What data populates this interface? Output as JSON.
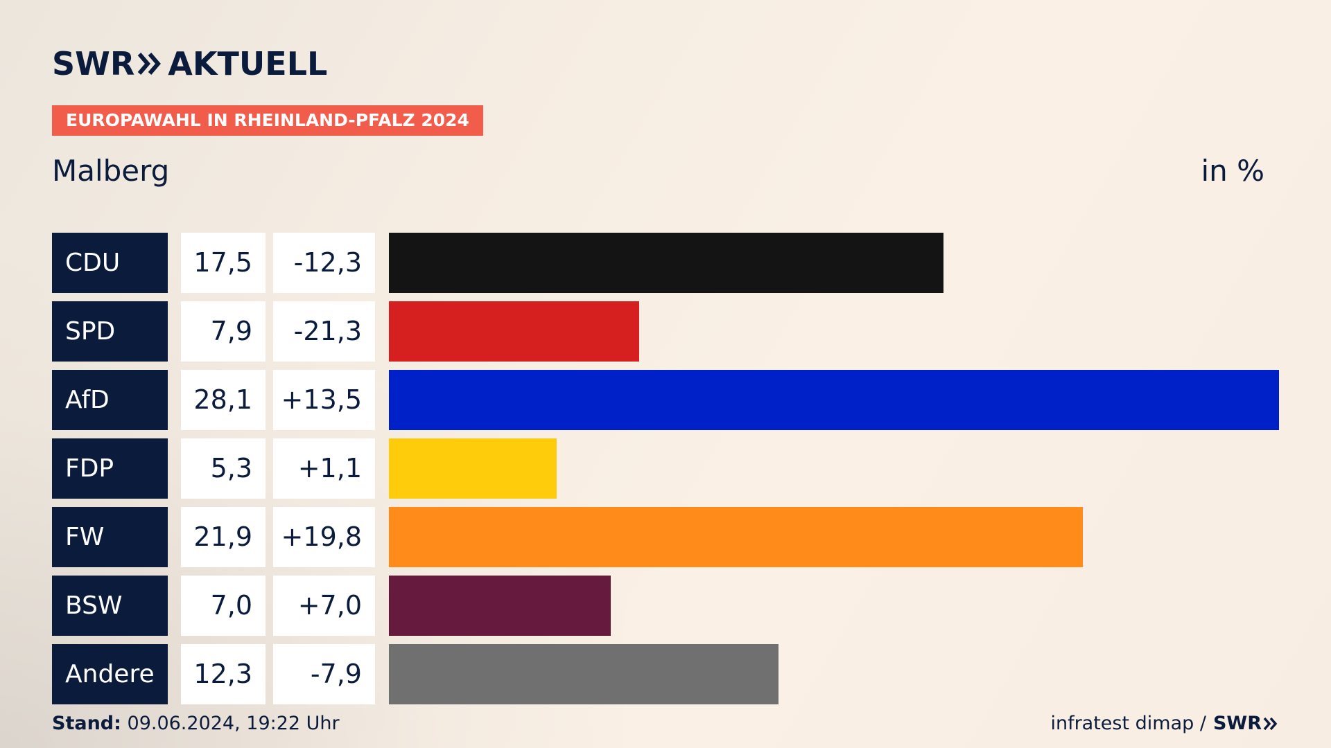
{
  "brand": {
    "logo_left": "SWR",
    "logo_right": "AKTUELL"
  },
  "kicker": "EUROPAWAHL IN RHEINLAND-PFALZ 2024",
  "place": "Malberg",
  "unit": "in %",
  "footer": {
    "stand_label": "Stand:",
    "stand_value": "09.06.2024, 19:22 Uhr",
    "source": "infratest dimap /",
    "source_logo": "SWR"
  },
  "colors": {
    "navy": "#0b1b3c",
    "kicker": "#f25c4a"
  },
  "chart_data": {
    "type": "bar",
    "orientation": "horizontal",
    "categories": [
      "CDU",
      "SPD",
      "AfD",
      "FDP",
      "FW",
      "BSW",
      "Andere"
    ],
    "values": [
      17.5,
      7.9,
      28.1,
      5.3,
      21.9,
      7.0,
      12.3
    ],
    "value_labels": [
      "17,5",
      "7,9",
      "28,1",
      "5,3",
      "21,9",
      "7,0",
      "12,3"
    ],
    "diffs": [
      -12.3,
      -21.3,
      13.5,
      1.1,
      19.8,
      7.0,
      -7.9
    ],
    "diff_labels": [
      "-12,3",
      "-21,3",
      "+13,5",
      "+1,1",
      "+19,8",
      "+7,0",
      "-7,9"
    ],
    "bar_colors": [
      "#141414",
      "#d6201f",
      "#0020c8",
      "#ffcc0c",
      "#ff8c1a",
      "#661a3d",
      "#707070"
    ],
    "xlim": [
      0,
      28.1
    ]
  }
}
